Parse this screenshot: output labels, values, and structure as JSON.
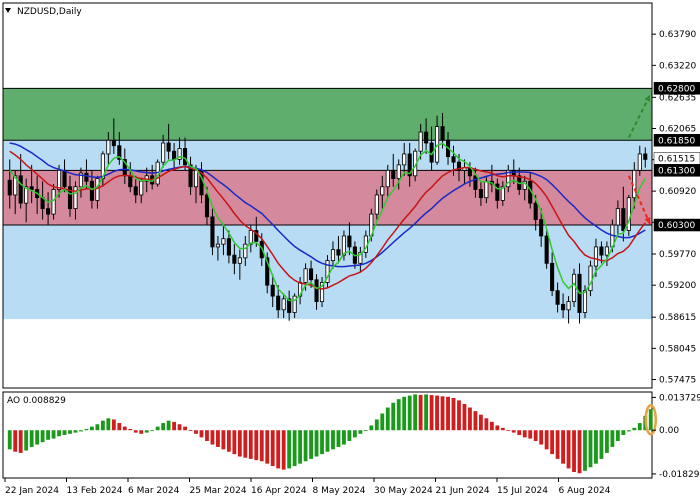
{
  "chart_data": {
    "type": "candlestick",
    "symbol_label": "NZDUSD,Daily",
    "ohlc_timeframe": "Daily",
    "price_axis": {
      "ylim": [
        0.5732,
        0.6436
      ],
      "ticks": [
        "0.63790",
        "0.63220",
        "0.62635",
        "0.62065",
        "0.61495",
        "0.60920",
        "0.60350",
        "0.59770",
        "0.59200",
        "0.58615",
        "0.58045",
        "0.57475"
      ]
    },
    "date_axis": {
      "tick_labels": [
        "22 Jan 2024",
        "13 Feb 2024",
        "6 Mar 2024",
        "25 Mar 2024",
        "16 Apr 2024",
        "8 May 2024",
        "30 May 2024",
        "21 Jun 2024",
        "15 Jul 2024",
        "6 Aug 2024"
      ]
    },
    "levels": [
      {
        "label": "0.62800",
        "value": 0.628,
        "color": "#000000",
        "text_color": "#ffffff"
      },
      {
        "label": "0.61850",
        "value": 0.6185,
        "color": "#000000",
        "text_color": "#ffffff"
      },
      {
        "label": "0.61515",
        "value": 0.61515,
        "color": "#ffffff",
        "text_color": "#000000"
      },
      {
        "label": "0.61300",
        "value": 0.613,
        "color": "#000000",
        "text_color": "#ffffff"
      },
      {
        "label": "0.60300",
        "value": 0.603,
        "color": "#000000",
        "text_color": "#ffffff"
      }
    ],
    "zones": [
      {
        "name": "green",
        "from": 0.6185,
        "to": 0.628,
        "color": "#5fae6e"
      },
      {
        "name": "pink",
        "from": 0.603,
        "to": 0.613,
        "color": "#d48a9c"
      },
      {
        "name": "blue",
        "from": 0.5858,
        "to": 0.6185,
        "color": "#b9dcf5"
      }
    ],
    "candles": [
      [
        0.6112,
        0.615,
        0.606,
        0.6085
      ],
      [
        0.6085,
        0.613,
        0.605,
        0.612
      ],
      [
        0.612,
        0.616,
        0.606,
        0.607
      ],
      [
        0.607,
        0.6115,
        0.6035,
        0.61
      ],
      [
        0.61,
        0.614,
        0.607,
        0.6095
      ],
      [
        0.6095,
        0.612,
        0.605,
        0.608
      ],
      [
        0.608,
        0.611,
        0.604,
        0.606
      ],
      [
        0.606,
        0.609,
        0.603,
        0.605
      ],
      [
        0.605,
        0.6105,
        0.604,
        0.6095
      ],
      [
        0.6095,
        0.614,
        0.608,
        0.613
      ],
      [
        0.613,
        0.615,
        0.609,
        0.61
      ],
      [
        0.61,
        0.612,
        0.6045,
        0.606
      ],
      [
        0.606,
        0.611,
        0.604,
        0.61
      ],
      [
        0.61,
        0.6135,
        0.608,
        0.6125
      ],
      [
        0.6125,
        0.615,
        0.6095,
        0.611
      ],
      [
        0.611,
        0.613,
        0.606,
        0.6075
      ],
      [
        0.6075,
        0.612,
        0.606,
        0.6115
      ],
      [
        0.6115,
        0.6165,
        0.61,
        0.616
      ],
      [
        0.616,
        0.62,
        0.614,
        0.6185
      ],
      [
        0.6185,
        0.6225,
        0.616,
        0.6175
      ],
      [
        0.6175,
        0.62,
        0.614,
        0.615
      ],
      [
        0.615,
        0.617,
        0.6105,
        0.612
      ],
      [
        0.612,
        0.6145,
        0.609,
        0.61
      ],
      [
        0.61,
        0.612,
        0.607,
        0.6085
      ],
      [
        0.6085,
        0.6115,
        0.607,
        0.611
      ],
      [
        0.611,
        0.6135,
        0.609,
        0.612
      ],
      [
        0.612,
        0.614,
        0.6095,
        0.6105
      ],
      [
        0.6105,
        0.615,
        0.61,
        0.6145
      ],
      [
        0.6145,
        0.6195,
        0.6135,
        0.618
      ],
      [
        0.618,
        0.6215,
        0.615,
        0.6165
      ],
      [
        0.6165,
        0.618,
        0.613,
        0.615
      ],
      [
        0.615,
        0.619,
        0.614,
        0.617
      ],
      [
        0.617,
        0.619,
        0.613,
        0.614
      ],
      [
        0.614,
        0.6155,
        0.6085,
        0.61
      ],
      [
        0.61,
        0.614,
        0.607,
        0.613
      ],
      [
        0.613,
        0.6145,
        0.607,
        0.6085
      ],
      [
        0.6085,
        0.61,
        0.603,
        0.6045
      ],
      [
        0.6045,
        0.606,
        0.5975,
        0.599
      ],
      [
        0.599,
        0.601,
        0.5965,
        0.5995
      ],
      [
        0.5995,
        0.603,
        0.5975,
        0.6005
      ],
      [
        0.6005,
        0.602,
        0.596,
        0.5975
      ],
      [
        0.5975,
        0.5995,
        0.594,
        0.596
      ],
      [
        0.596,
        0.5985,
        0.593,
        0.597
      ],
      [
        0.597,
        0.601,
        0.5955,
        0.5995
      ],
      [
        0.5995,
        0.603,
        0.598,
        0.602
      ],
      [
        0.602,
        0.6045,
        0.599,
        0.6
      ],
      [
        0.6,
        0.6015,
        0.5955,
        0.597
      ],
      [
        0.597,
        0.598,
        0.5905,
        0.592
      ],
      [
        0.592,
        0.594,
        0.588,
        0.59
      ],
      [
        0.59,
        0.592,
        0.586,
        0.5875
      ],
      [
        0.5875,
        0.5905,
        0.586,
        0.5895
      ],
      [
        0.5895,
        0.591,
        0.5855,
        0.587
      ],
      [
        0.587,
        0.5905,
        0.586,
        0.59
      ],
      [
        0.59,
        0.5935,
        0.5885,
        0.5925
      ],
      [
        0.5925,
        0.596,
        0.591,
        0.595
      ],
      [
        0.595,
        0.5965,
        0.5915,
        0.593
      ],
      [
        0.593,
        0.594,
        0.5875,
        0.589
      ],
      [
        0.589,
        0.5935,
        0.588,
        0.5925
      ],
      [
        0.5925,
        0.5975,
        0.5915,
        0.5965
      ],
      [
        0.5965,
        0.6,
        0.595,
        0.5985
      ],
      [
        0.5985,
        0.601,
        0.596,
        0.5975
      ],
      [
        0.5975,
        0.602,
        0.5965,
        0.601
      ],
      [
        0.601,
        0.6035,
        0.5975,
        0.599
      ],
      [
        0.599,
        0.6,
        0.595,
        0.596
      ],
      [
        0.596,
        0.599,
        0.5945,
        0.598
      ],
      [
        0.598,
        0.602,
        0.597,
        0.601
      ],
      [
        0.601,
        0.606,
        0.6,
        0.605
      ],
      [
        0.605,
        0.6095,
        0.604,
        0.6085
      ],
      [
        0.6085,
        0.612,
        0.606,
        0.61
      ],
      [
        0.61,
        0.614,
        0.608,
        0.613
      ],
      [
        0.613,
        0.616,
        0.61,
        0.6115
      ],
      [
        0.6115,
        0.615,
        0.6095,
        0.614
      ],
      [
        0.614,
        0.618,
        0.612,
        0.616
      ],
      [
        0.616,
        0.618,
        0.61,
        0.612
      ],
      [
        0.612,
        0.617,
        0.611,
        0.6165
      ],
      [
        0.6165,
        0.6215,
        0.615,
        0.62
      ],
      [
        0.62,
        0.6225,
        0.616,
        0.618
      ],
      [
        0.618,
        0.621,
        0.613,
        0.6145
      ],
      [
        0.6145,
        0.623,
        0.614,
        0.621
      ],
      [
        0.621,
        0.6235,
        0.617,
        0.6185
      ],
      [
        0.6185,
        0.62,
        0.614,
        0.6155
      ],
      [
        0.6155,
        0.6175,
        0.612,
        0.6145
      ],
      [
        0.6145,
        0.616,
        0.611,
        0.613
      ],
      [
        0.613,
        0.615,
        0.6105,
        0.6135
      ],
      [
        0.6135,
        0.6145,
        0.61,
        0.612
      ],
      [
        0.612,
        0.6135,
        0.608,
        0.6095
      ],
      [
        0.6095,
        0.611,
        0.6065,
        0.608
      ],
      [
        0.608,
        0.612,
        0.607,
        0.611
      ],
      [
        0.611,
        0.614,
        0.609,
        0.6105
      ],
      [
        0.6105,
        0.6115,
        0.606,
        0.6075
      ],
      [
        0.6075,
        0.611,
        0.6065,
        0.61
      ],
      [
        0.61,
        0.614,
        0.609,
        0.613
      ],
      [
        0.613,
        0.615,
        0.6105,
        0.612
      ],
      [
        0.612,
        0.6135,
        0.6085,
        0.6095
      ],
      [
        0.6095,
        0.612,
        0.6075,
        0.611
      ],
      [
        0.611,
        0.6125,
        0.606,
        0.607
      ],
      [
        0.607,
        0.6085,
        0.602,
        0.604
      ],
      [
        0.604,
        0.606,
        0.599,
        0.601
      ],
      [
        0.601,
        0.602,
        0.595,
        0.596
      ],
      [
        0.596,
        0.598,
        0.59,
        0.591
      ],
      [
        0.591,
        0.5925,
        0.587,
        0.5885
      ],
      [
        0.5885,
        0.5905,
        0.586,
        0.5875
      ],
      [
        0.5875,
        0.59,
        0.585,
        0.589
      ],
      [
        0.589,
        0.595,
        0.588,
        0.594
      ],
      [
        0.594,
        0.596,
        0.585,
        0.587
      ],
      [
        0.587,
        0.592,
        0.586,
        0.591
      ],
      [
        0.591,
        0.5965,
        0.59,
        0.5955
      ],
      [
        0.5955,
        0.6005,
        0.5935,
        0.599
      ],
      [
        0.599,
        0.6,
        0.596,
        0.5975
      ],
      [
        0.5975,
        0.6,
        0.5955,
        0.599
      ],
      [
        0.599,
        0.604,
        0.598,
        0.603
      ],
      [
        0.603,
        0.6075,
        0.601,
        0.606
      ],
      [
        0.606,
        0.61,
        0.6,
        0.602
      ],
      [
        0.602,
        0.6085,
        0.601,
        0.608
      ],
      [
        0.608,
        0.6145,
        0.606,
        0.613
      ],
      [
        0.613,
        0.6175,
        0.612,
        0.616
      ],
      [
        0.616,
        0.6172,
        0.6135,
        0.615
      ]
    ],
    "moving_averages": [
      {
        "color": "#1a28c8",
        "values": [
          0.618,
          0.6178,
          0.6174,
          0.6168,
          0.6162,
          0.6155,
          0.6148,
          0.614,
          0.6135,
          0.6132,
          0.6129,
          0.6125,
          0.6122,
          0.6121,
          0.612,
          0.6118,
          0.6117,
          0.6119,
          0.6123,
          0.6128,
          0.6131,
          0.6132,
          0.6131,
          0.6129,
          0.6127,
          0.6126,
          0.6125,
          0.6126,
          0.6129,
          0.6132,
          0.6134,
          0.6136,
          0.6137,
          0.6136,
          0.6134,
          0.6131,
          0.6126,
          0.6119,
          0.6111,
          0.6104,
          0.6096,
          0.6087,
          0.6079,
          0.6071,
          0.6065,
          0.6058,
          0.6051,
          0.6041,
          0.6031,
          0.602,
          0.601,
          0.6,
          0.5991,
          0.5984,
          0.5978,
          0.5972,
          0.5965,
          0.596,
          0.5957,
          0.5955,
          0.5954,
          0.5954,
          0.5955,
          0.5956,
          0.5957,
          0.596,
          0.5965,
          0.5972,
          0.598,
          0.5989,
          0.5998,
          0.6007,
          0.6016,
          0.6024,
          0.6033,
          0.6043,
          0.6052,
          0.606,
          0.607,
          0.6079,
          0.6086,
          0.6093,
          0.6099,
          0.6105,
          0.611,
          0.6113,
          0.6116,
          0.6119,
          0.6122,
          0.6123,
          0.6124,
          0.6126,
          0.6127,
          0.6127,
          0.6127,
          0.6126,
          0.6123,
          0.6119,
          0.6113,
          0.6104,
          0.6094,
          0.6083,
          0.6073,
          0.6064,
          0.6053,
          0.6043,
          0.6035,
          0.6028,
          0.6021,
          0.6015,
          0.6011,
          0.6009,
          0.6007,
          0.6007,
          0.601,
          0.6015,
          0.6021
        ]
      },
      {
        "color": "#c81414",
        "values": [
          0.6165,
          0.6158,
          0.615,
          0.614,
          0.6132,
          0.6123,
          0.6114,
          0.6105,
          0.61,
          0.6098,
          0.6096,
          0.6093,
          0.6092,
          0.6094,
          0.6096,
          0.6096,
          0.6097,
          0.6102,
          0.6109,
          0.6116,
          0.612,
          0.6121,
          0.612,
          0.6117,
          0.6115,
          0.6114,
          0.6113,
          0.6116,
          0.6122,
          0.6128,
          0.6132,
          0.6135,
          0.6137,
          0.6134,
          0.6131,
          0.6125,
          0.6116,
          0.6103,
          0.609,
          0.6078,
          0.6065,
          0.6051,
          0.6039,
          0.6029,
          0.6022,
          0.6015,
          0.6005,
          0.5991,
          0.5976,
          0.596,
          0.5948,
          0.5937,
          0.5929,
          0.5924,
          0.5922,
          0.592,
          0.5915,
          0.5913,
          0.5915,
          0.592,
          0.5925,
          0.5931,
          0.5937,
          0.594,
          0.5944,
          0.5951,
          0.5961,
          0.5974,
          0.5988,
          0.6003,
          0.6015,
          0.6028,
          0.6041,
          0.6052,
          0.6064,
          0.6078,
          0.609,
          0.6099,
          0.611,
          0.612,
          0.6126,
          0.6131,
          0.6133,
          0.6135,
          0.6135,
          0.6132,
          0.6129,
          0.6127,
          0.6125,
          0.612,
          0.6118,
          0.612,
          0.612,
          0.6118,
          0.6117,
          0.6113,
          0.6106,
          0.6095,
          0.6082,
          0.6064,
          0.6046,
          0.6028,
          0.6011,
          0.6,
          0.5986,
          0.5975,
          0.597,
          0.5968,
          0.5965,
          0.5965,
          0.597,
          0.5978,
          0.5982,
          0.5991,
          0.6006,
          0.6021,
          0.6034
        ]
      },
      {
        "color": "#32c832",
        "values": [
          0.613,
          0.6117,
          0.6105,
          0.6097,
          0.6093,
          0.6088,
          0.608,
          0.6072,
          0.6075,
          0.6088,
          0.6095,
          0.6087,
          0.6088,
          0.6098,
          0.6102,
          0.6095,
          0.61,
          0.6118,
          0.614,
          0.6152,
          0.6155,
          0.6145,
          0.613,
          0.6115,
          0.6111,
          0.6112,
          0.611,
          0.612,
          0.6138,
          0.6148,
          0.6149,
          0.6155,
          0.6152,
          0.6137,
          0.6133,
          0.6117,
          0.6092,
          0.6064,
          0.6043,
          0.603,
          0.6015,
          0.5998,
          0.5987,
          0.5987,
          0.5997,
          0.5998,
          0.5988,
          0.5963,
          0.5937,
          0.5913,
          0.5903,
          0.5892,
          0.5892,
          0.5902,
          0.592,
          0.5925,
          0.5914,
          0.5918,
          0.5935,
          0.5954,
          0.5962,
          0.5978,
          0.5982,
          0.5974,
          0.5976,
          0.5988,
          0.601,
          0.6036,
          0.6057,
          0.6081,
          0.6093,
          0.6109,
          0.6126,
          0.6124,
          0.6138,
          0.6158,
          0.6166,
          0.6159,
          0.6176,
          0.6179,
          0.6171,
          0.6162,
          0.6151,
          0.6146,
          0.6137,
          0.6123,
          0.6109,
          0.6109,
          0.6107,
          0.6096,
          0.6097,
          0.6108,
          0.6112,
          0.6106,
          0.6107,
          0.6095,
          0.6077,
          0.6055,
          0.6023,
          0.5985,
          0.5952,
          0.5926,
          0.5914,
          0.5923,
          0.5905,
          0.5907,
          0.5923,
          0.5946,
          0.5956,
          0.5968,
          0.5989,
          0.6013,
          0.6015,
          0.6037,
          0.6068,
          0.6098,
          0.6115
        ]
      }
    ],
    "forecast_arrows": [
      {
        "color": "#2e8b2e",
        "from_index": 113,
        "from": 0.619,
        "to_index": 117,
        "to": 0.6268
      },
      {
        "color": "#e8281e",
        "from_index": 113,
        "from": 0.612,
        "to_index": 117,
        "to": 0.6032
      }
    ],
    "ao_indicator": {
      "title": "AO 0.008829",
      "ylim": [
        -0.02,
        0.016
      ],
      "ticks": [
        "0.013729",
        "0.00",
        "-0.018297"
      ],
      "values": [
        -0.008,
        -0.009,
        -0.0095,
        -0.0085,
        -0.007,
        -0.006,
        -0.005,
        -0.004,
        -0.0035,
        -0.0025,
        -0.002,
        -0.0015,
        -0.001,
        -0.0005,
        0.0005,
        0.0015,
        0.0025,
        0.004,
        0.005,
        0.0045,
        0.003,
        0.0015,
        0.0005,
        -0.001,
        -0.0015,
        -0.001,
        0.0,
        0.0015,
        0.003,
        0.004,
        0.0035,
        0.0025,
        0.0015,
        0.0,
        -0.0015,
        -0.003,
        -0.0045,
        -0.006,
        -0.007,
        -0.008,
        -0.009,
        -0.01,
        -0.011,
        -0.0115,
        -0.012,
        -0.0125,
        -0.013,
        -0.014,
        -0.015,
        -0.016,
        -0.0165,
        -0.016,
        -0.015,
        -0.014,
        -0.013,
        -0.012,
        -0.011,
        -0.01,
        -0.009,
        -0.008,
        -0.007,
        -0.006,
        -0.0045,
        -0.003,
        -0.0015,
        0.0,
        0.002,
        0.0045,
        0.007,
        0.0095,
        0.0115,
        0.013,
        0.014,
        0.0145,
        0.015,
        0.0148,
        0.015,
        0.0147,
        0.0145,
        0.0142,
        0.014,
        0.0135,
        0.0125,
        0.011,
        0.0095,
        0.008,
        0.0065,
        0.005,
        0.0035,
        0.002,
        0.001,
        0.0,
        -0.001,
        -0.002,
        -0.003,
        -0.0035,
        -0.0045,
        -0.006,
        -0.008,
        -0.01,
        -0.012,
        -0.014,
        -0.016,
        -0.0175,
        -0.018,
        -0.017,
        -0.0155,
        -0.014,
        -0.012,
        -0.0095,
        -0.007,
        -0.0045,
        -0.002,
        -0.0005,
        0.001,
        0.003,
        0.006,
        0.0088
      ],
      "up_color": "#1a9a1a",
      "down_color": "#d01e1e",
      "highlight_color": "#e8a040"
    },
    "colors": {
      "grid": "#c8c8c8",
      "background": "#ffffff",
      "candle": "#000000"
    }
  }
}
